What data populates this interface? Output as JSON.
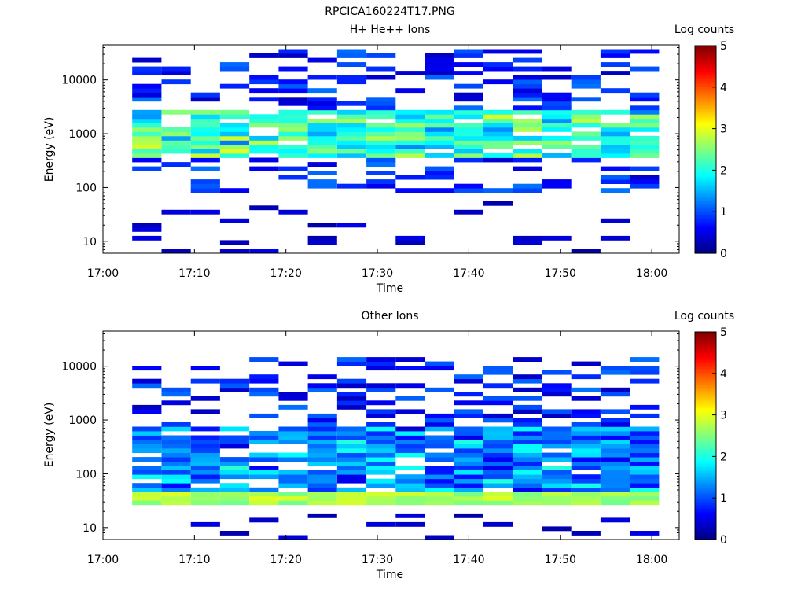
{
  "figure_title": "RPCICA160224T17.PNG",
  "colors": {
    "jet": [
      "#00007f",
      "#0000ff",
      "#007fff",
      "#00ffff",
      "#7fff7f",
      "#ffff00",
      "#ff7f00",
      "#ff0000",
      "#7f0000"
    ]
  },
  "chart_data": [
    {
      "type": "heatmap",
      "title": "H+ He++ Ions",
      "xlabel": "Time",
      "ylabel": "Energy (eV)",
      "x_ticks": [
        "17:00",
        "17:10",
        "17:20",
        "17:30",
        "17:40",
        "17:50",
        "18:00"
      ],
      "x_range_min": [
        0,
        63
      ],
      "y_scale": "log",
      "y_range_eV": [
        6,
        45000
      ],
      "y_ticks": [
        "10",
        "100",
        "1000",
        "10000"
      ],
      "colorbar": {
        "label": "Log counts",
        "range": [
          0,
          5
        ],
        "ticks": [
          "0",
          "1",
          "2",
          "3",
          "4",
          "5"
        ]
      },
      "time_bins_start_min": [
        3.2,
        6.4,
        9.6,
        12.8,
        16.0,
        19.2,
        22.4,
        25.6,
        28.8,
        32.0,
        35.2,
        38.4,
        41.6,
        44.8,
        48.0,
        51.2,
        54.4,
        57.6
      ],
      "time_bin_width_min": 3.2,
      "seed": 11,
      "spectrum": {
        "core_eV": [
          350,
          2900
        ],
        "core_log_counts": [
          2.0,
          3.0
        ],
        "halo_eV": [
          80,
          40000
        ],
        "low_tail_eV": [
          6,
          60
        ]
      }
    },
    {
      "type": "heatmap",
      "title": "Other Ions",
      "xlabel": "Time",
      "ylabel": "Energy (eV)",
      "x_ticks": [
        "17:00",
        "17:10",
        "17:20",
        "17:30",
        "17:40",
        "17:50",
        "18:00"
      ],
      "x_range_min": [
        0,
        63
      ],
      "y_scale": "log",
      "y_range_eV": [
        6,
        45000
      ],
      "y_ticks": [
        "10",
        "100",
        "1000",
        "10000"
      ],
      "colorbar": {
        "label": "Log counts",
        "range": [
          0,
          5
        ],
        "ticks": [
          "0",
          "1",
          "2",
          "3",
          "4",
          "5"
        ]
      },
      "time_bins_start_min": [
        3.2,
        6.4,
        9.6,
        12.8,
        16.0,
        19.2,
        22.4,
        25.6,
        28.8,
        32.0,
        35.2,
        38.4,
        41.6,
        44.8,
        48.0,
        51.2,
        54.4,
        57.6
      ],
      "time_bin_width_min": 3.2,
      "seed": 29,
      "spectrum": {
        "core_eV": [
          25,
          800
        ],
        "core_log_counts": [
          1.2,
          2.2
        ],
        "peak_band_eV": [
          28,
          48
        ],
        "peak_log_counts": 3.0,
        "halo_eV": [
          800,
          16000
        ],
        "low_tail_eV": [
          6,
          20
        ]
      }
    }
  ]
}
